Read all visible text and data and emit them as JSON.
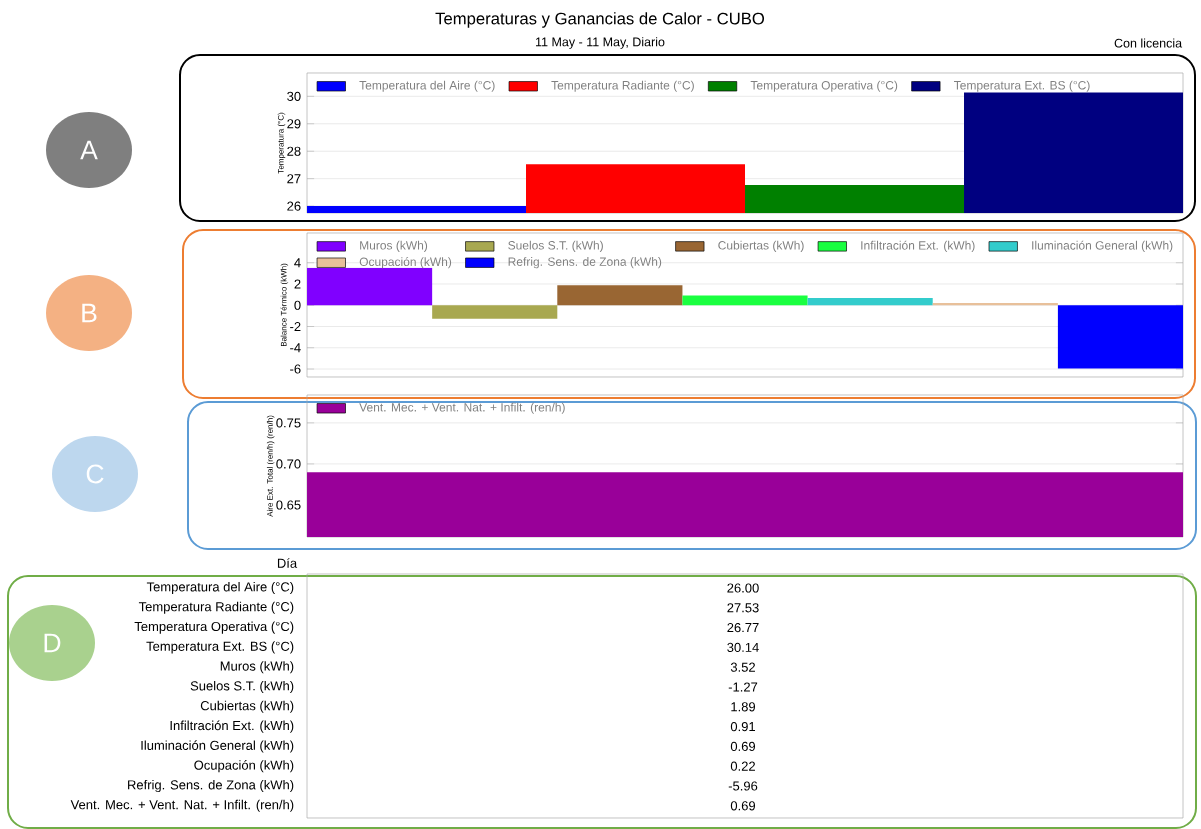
{
  "chart_data": [
    {
      "type": "bar",
      "title": "Temperaturas y Ganancias de Calor - CUBO",
      "subtitle": "11 May - 11 May, Diario",
      "annotations": [
        "A",
        "Con licencia"
      ],
      "ylabel": "Temperatura (°C)",
      "categories": [
        null
      ],
      "ylim": [
        25.75,
        30.85
      ],
      "yticks": [
        26,
        27,
        28,
        29,
        30
      ],
      "grid": "y",
      "legend": "top left",
      "series": [
        {
          "name": "Temperatura del Aire (°C)",
          "color": "#0000ff",
          "values": [
            26.0
          ]
        },
        {
          "name": "Temperatura Radiante (°C)",
          "color": "#ff0000",
          "values": [
            27.53
          ]
        },
        {
          "name": "Temperatura Operativa (°C)",
          "color": "#008000",
          "values": [
            26.77
          ]
        },
        {
          "name": "Temperatura Ext. BS (°C)",
          "color": "#000080",
          "values": [
            30.14
          ]
        }
      ]
    },
    {
      "type": "bar",
      "annotations": [
        "B"
      ],
      "ylabel": "Balance Térmico (kWh)",
      "categories": [
        null
      ],
      "ylim": [
        -6.75,
        6.8
      ],
      "yticks": [
        -6,
        -4,
        -2,
        0,
        2,
        4
      ],
      "grid": "y",
      "legend": "top left",
      "series": [
        {
          "name": "Muros (kWh)",
          "color": "#8000ff",
          "values": [
            3.52
          ]
        },
        {
          "name": "Suelos S.T. (kWh)",
          "color": "#a8a850",
          "values": [
            -1.27
          ]
        },
        {
          "name": "Cubiertas (kWh)",
          "color": "#996633",
          "values": [
            1.89
          ]
        },
        {
          "name": "Infiltración Ext. (kWh)",
          "color": "#1aff40",
          "values": [
            0.91
          ]
        },
        {
          "name": "Iluminación General (kWh)",
          "color": "#33cccc",
          "values": [
            0.69
          ]
        },
        {
          "name": "Ocupación (kWh)",
          "color": "#e8c09a",
          "values": [
            0.22
          ]
        },
        {
          "name": "Refrig. Sens. de Zona (kWh)",
          "color": "#0000ff",
          "values": [
            -5.96
          ]
        }
      ]
    },
    {
      "type": "bar",
      "annotations": [
        "C"
      ],
      "ylabel": "Aire Ext. Total (ren/h) (ren/h)",
      "categories": [
        null
      ],
      "ylim": [
        0.611,
        0.784
      ],
      "yticks": [
        {
          "value": 0.65,
          "label": "0.65"
        },
        {
          "value": 0.7,
          "label": "0.70"
        },
        {
          "value": 0.75,
          "label": "0.75"
        }
      ],
      "grid": "y",
      "legend": "top left",
      "series": [
        {
          "name": "Vent. Mec. + Vent. Nat. + Infilt. (ren/h)",
          "color": "#990099",
          "values": [
            0.69
          ]
        }
      ]
    },
    {
      "type": "other",
      "xlabel": "Día",
      "annotations": [
        "D"
      ],
      "value_labels": [
        "26.00",
        "27.53",
        "26.77",
        "30.14",
        "3.52",
        "-1.27",
        "1.89",
        "0.91",
        "0.69",
        "0.22",
        "-5.96",
        "0.69"
      ],
      "categories": [
        "Temperatura del Aire (°C)",
        "Temperatura Radiante (°C)",
        "Temperatura Operativa (°C)",
        "Temperatura Ext. BS (°C)",
        "Muros (kWh)",
        "Suelos S.T. (kWh)",
        "Cubiertas (kWh)",
        "Infiltración Ext. (kWh)",
        "Iluminación General (kWh)",
        "Ocupación (kWh)",
        "Refrig. Sens. de Zona (kWh)",
        "Vent. Mec. + Vent. Nat. + Infilt. (ren/h)"
      ]
    }
  ]
}
